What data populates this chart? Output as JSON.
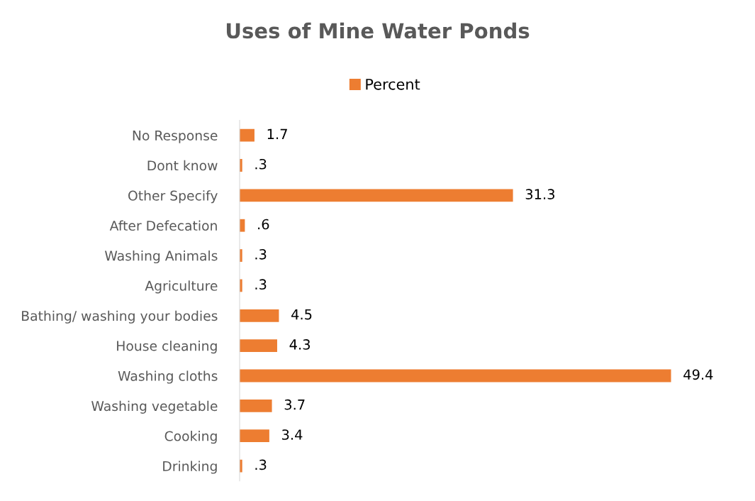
{
  "chart_data": {
    "type": "bar",
    "orientation": "horizontal",
    "title": "Uses of Mine Water Ponds",
    "categories": [
      "No Response",
      "Dont know",
      "Other Specify",
      "After Defecation",
      "Washing Animals",
      "Agriculture",
      "Bathing/ washing your bodies",
      "House cleaning",
      "Washing cloths",
      "Washing vegetable",
      "Cooking",
      "Drinking"
    ],
    "series": [
      {
        "name": "Percent",
        "color": "#ed7d31",
        "values": [
          1.7,
          0.3,
          31.3,
          0.6,
          0.3,
          0.3,
          4.5,
          4.3,
          49.4,
          3.7,
          3.4,
          0.3
        ],
        "value_labels": [
          "1.7",
          ".3",
          "31.3",
          ".6",
          ".3",
          ".3",
          "4.5",
          "4.3",
          "49.4",
          "3.7",
          "3.4",
          ".3"
        ]
      }
    ],
    "legend": "top",
    "grid": false
  }
}
